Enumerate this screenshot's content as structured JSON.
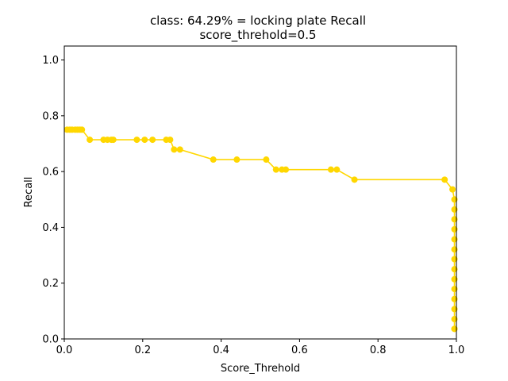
{
  "chart_data": {
    "type": "line",
    "title": "class: 64.29% = locking plate Recall",
    "subtitle": "score_threhold=0.5",
    "xlabel": "Score_Threhold",
    "ylabel": "Recall",
    "xlim": [
      0.0,
      1.0
    ],
    "ylim": [
      0.0,
      1.05
    ],
    "xticks": [
      0.0,
      0.2,
      0.4,
      0.6,
      0.8,
      1.0
    ],
    "xtick_labels": [
      "0.0",
      "0.2",
      "0.4",
      "0.6",
      "0.8",
      "1.0"
    ],
    "yticks": [
      0.0,
      0.2,
      0.4,
      0.6,
      0.8,
      1.0
    ],
    "ytick_labels": [
      "0.0",
      "0.2",
      "0.4",
      "0.6",
      "0.8",
      "1.0"
    ],
    "grid": false,
    "legend": "none",
    "series": [
      {
        "color": "#ffd700",
        "marker": "circle",
        "x": [
          0.007,
          0.014,
          0.02,
          0.028,
          0.034,
          0.04,
          0.045,
          0.065,
          0.1,
          0.11,
          0.12,
          0.125,
          0.185,
          0.205,
          0.225,
          0.26,
          0.27,
          0.28,
          0.295,
          0.38,
          0.44,
          0.515,
          0.54,
          0.555,
          0.565,
          0.68,
          0.695,
          0.74,
          0.97,
          0.99,
          0.995,
          0.995,
          0.995,
          0.995,
          0.995,
          0.995,
          0.995,
          0.995,
          0.995,
          0.995,
          0.995,
          0.995,
          0.995,
          0.995,
          0.995
        ],
        "y": [
          0.75,
          0.75,
          0.75,
          0.75,
          0.75,
          0.75,
          0.75,
          0.714,
          0.714,
          0.714,
          0.714,
          0.714,
          0.714,
          0.714,
          0.714,
          0.714,
          0.714,
          0.679,
          0.679,
          0.643,
          0.643,
          0.643,
          0.607,
          0.607,
          0.607,
          0.607,
          0.607,
          0.571,
          0.571,
          0.536,
          0.5,
          0.464,
          0.429,
          0.393,
          0.357,
          0.321,
          0.286,
          0.25,
          0.214,
          0.179,
          0.143,
          0.107,
          0.071,
          0.036,
          0.036
        ]
      }
    ]
  }
}
